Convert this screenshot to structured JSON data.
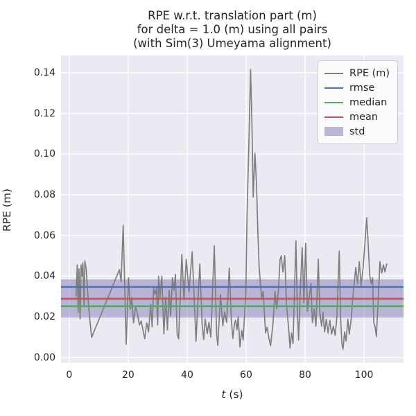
{
  "title": {
    "line1": "RPE w.r.t. translation part (m)",
    "line2": "for delta = 1.0 (m) using all pairs",
    "line3": "(with Sim(3) Umeyama alignment)"
  },
  "axes": {
    "ylabel": "RPE (m)",
    "xlabel_var": "t",
    "xlabel_unit": " (s)"
  },
  "colors": {
    "figure_background": "#ffffff",
    "axes_background": "#eaeaf2",
    "grid": "#ffffff",
    "text": "#262626",
    "rpe_line": "#7f7f7f",
    "rmse_line": "#4c72b0",
    "median_line": "#55a868",
    "mean_line": "#c44e52",
    "std_band": "#8172b2"
  },
  "legend": {
    "entries": [
      {
        "label": "RPE (m)",
        "swatch": "line",
        "color": "#7f7f7f",
        "thickness": 2.2
      },
      {
        "label": "rmse",
        "swatch": "line",
        "color": "#4c72b0",
        "thickness": 2.8
      },
      {
        "label": "median",
        "swatch": "line",
        "color": "#55a868",
        "thickness": 2.8
      },
      {
        "label": "mean",
        "swatch": "line",
        "color": "#c44e52",
        "thickness": 2.8
      },
      {
        "label": "std",
        "swatch": "patch",
        "color": "#8172b2",
        "alpha": 0.5
      }
    ]
  },
  "chart_data": {
    "type": "line",
    "title": "RPE w.r.t. translation part (m)\nfor delta = 1.0 (m) using all pairs\n(with Sim(3) Umeyama alignment)",
    "xlabel": "t (s)",
    "ylabel": "RPE (m)",
    "xlim": [
      -2.8,
      113.4
    ],
    "ylim": [
      -0.0025,
      0.1485
    ],
    "xticks": [
      0,
      20,
      40,
      60,
      80,
      100
    ],
    "xtick_labels": [
      "0",
      "20",
      "40",
      "60",
      "80",
      "100"
    ],
    "yticks": [
      0.0,
      0.02,
      0.04,
      0.06,
      0.08,
      0.1,
      0.12,
      0.14
    ],
    "ytick_labels": [
      "0.00",
      "0.02",
      "0.04",
      "0.06",
      "0.08",
      "0.10",
      "0.12",
      "0.14"
    ],
    "grid": true,
    "legend_position": "upper right",
    "hlines": [
      {
        "name": "rmse",
        "value": 0.0347,
        "color": "#4c72b0"
      },
      {
        "name": "median",
        "value": 0.0252,
        "color": "#55a868"
      },
      {
        "name": "mean",
        "value": 0.0289,
        "color": "#c44e52"
      }
    ],
    "band": {
      "name": "std",
      "range": [
        0.0196,
        0.0384
      ],
      "color": "#8172b2",
      "alpha": 0.45
    },
    "series": [
      {
        "name": "RPE (m)",
        "color": "#7f7f7f",
        "x": [
          2.3,
          2.7,
          3.0,
          3.3,
          3.7,
          4.0,
          4.3,
          4.6,
          5.0,
          5.3,
          5.7,
          6.2,
          6.8,
          7.6,
          17.0,
          17.6,
          18.3,
          19.3,
          20.1,
          20.7,
          21.2,
          21.8,
          22.5,
          23.2,
          23.8,
          24.4,
          25.0,
          25.6,
          26.3,
          26.9,
          27.6,
          28.1,
          28.6,
          29.1,
          29.6,
          30.0,
          30.3,
          30.8,
          31.4,
          32.1,
          32.7,
          33.3,
          33.9,
          34.4,
          35.0,
          35.5,
          36.0,
          36.6,
          37.1,
          38.2,
          38.9,
          39.7,
          40.6,
          41.7,
          43.0,
          44.3,
          45.1,
          45.6,
          46.1,
          46.8,
          47.4,
          48.0,
          49.2,
          50.0,
          50.4,
          51.3,
          52.1,
          52.7,
          53.4,
          54.3,
          55.0,
          55.5,
          56.0,
          56.4,
          56.9,
          57.3,
          57.9,
          58.5,
          59.0,
          59.3,
          59.9,
          60.3,
          60.9,
          61.5,
          62.0,
          62.4,
          63.0,
          63.5,
          64.0,
          64.4,
          64.9,
          65.3,
          65.8,
          66.1,
          66.6,
          67.1,
          67.7,
          68.3,
          69.1,
          69.8,
          70.4,
          71.0,
          71.5,
          71.9,
          72.5,
          73.1,
          73.7,
          74.4,
          74.9,
          75.4,
          75.9,
          76.9,
          77.4,
          77.8,
          78.4,
          79.0,
          79.6,
          80.2,
          80.8,
          81.4,
          82.0,
          82.5,
          83.1,
          83.7,
          84.5,
          85.0,
          85.6,
          86.1,
          86.6,
          87.2,
          87.8,
          88.4,
          89.0,
          89.6,
          90.2,
          90.8,
          91.6,
          92.1,
          92.5,
          92.9,
          93.4,
          93.9,
          94.5,
          95.0,
          95.6,
          96.2,
          97.2,
          97.8,
          98.4,
          99.0,
          99.7,
          100.9,
          101.4,
          101.9,
          102.4,
          102.9,
          103.3,
          103.7,
          104.2,
          105.4,
          106.0,
          106.6,
          107.1,
          107.7
        ],
        "y": [
          0.0304,
          0.0455,
          0.0221,
          0.0435,
          0.019,
          0.0455,
          0.04,
          0.0465,
          0.0258,
          0.0475,
          0.044,
          0.033,
          0.021,
          0.0099,
          0.0432,
          0.0374,
          0.065,
          0.0065,
          0.0392,
          0.0238,
          0.0296,
          0.017,
          0.0252,
          0.0211,
          0.016,
          0.018,
          0.0136,
          0.0092,
          0.017,
          0.0126,
          0.0262,
          0.015,
          0.034,
          0.031,
          0.034,
          0.016,
          0.04,
          0.0296,
          0.04,
          0.0116,
          0.0296,
          0.0136,
          0.033,
          0.0204,
          0.0392,
          0.033,
          0.0409,
          0.0116,
          0.0092,
          0.0507,
          0.0286,
          0.0483,
          0.0323,
          0.052,
          0.008,
          0.046,
          0.0162,
          0.0088,
          0.019,
          0.0117,
          0.0173,
          0.01,
          0.055,
          0.0111,
          0.006,
          0.0309,
          0.0156,
          0.0224,
          0.0173,
          0.044,
          0.0179,
          0.0094,
          0.0162,
          0.0184,
          0.0136,
          0.0201,
          0.0052,
          0.0133,
          0.0086,
          0.0167,
          0.0324,
          0.0704,
          0.1027,
          0.1416,
          0.1129,
          0.0789,
          0.1004,
          0.0857,
          0.0608,
          0.0449,
          0.0353,
          0.0296,
          0.0324,
          0.0245,
          0.0121,
          0.0149,
          0.0098,
          0.0058,
          0.0166,
          0.0324,
          0.0239,
          0.0336,
          0.0483,
          0.05,
          0.0421,
          0.05,
          0.0262,
          0.0149,
          0.0047,
          0.0121,
          0.0069,
          0.0574,
          0.0222,
          0.0086,
          0.0336,
          0.054,
          0.0268,
          0.0562,
          0.0228,
          0.0296,
          0.0364,
          0.0171,
          0.0239,
          0.0154,
          0.0483,
          0.0222,
          0.0154,
          0.0222,
          0.0126,
          0.0188,
          0.012,
          0.0183,
          0.0115,
          0.0154,
          0.0109,
          0.02,
          0.0523,
          0.0188,
          0.0069,
          0.0041,
          0.0126,
          0.0081,
          0.0188,
          0.0115,
          0.0183,
          0.0296,
          0.0443,
          0.0364,
          0.0472,
          0.0353,
          0.0443,
          0.0687,
          0.0562,
          0.0409,
          0.0364,
          0.0392,
          0.0171,
          0.0154,
          0.0103,
          0.0472,
          0.0415,
          0.0455,
          0.0421,
          0.046
        ]
      }
    ]
  }
}
